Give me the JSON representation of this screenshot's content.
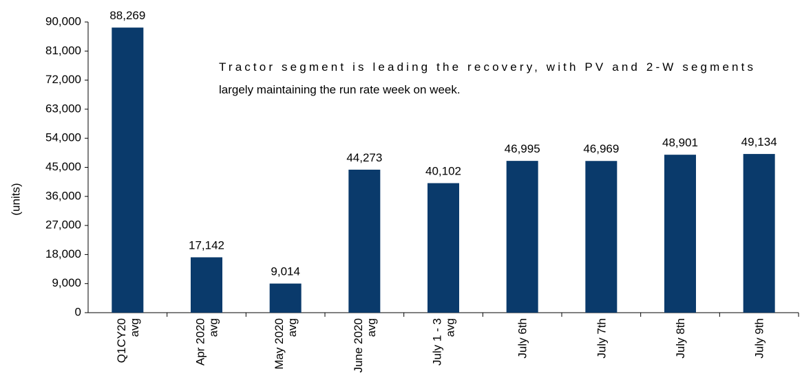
{
  "chart_data": {
    "type": "bar",
    "y_label": "(units)",
    "annotation": [
      "Tractor segment is leading the recovery,  with  PV and 2-W segments",
      "largely maintaining the run rate week on week."
    ],
    "categories": [
      "Q1CY20\navg",
      "Apr 2020\navg",
      "May 2020\navg",
      "June 2020\navg",
      "July 1 - 3\navg",
      "July 6th",
      "July 7th",
      "July 8th",
      "July 9th"
    ],
    "values": [
      88269,
      17142,
      9014,
      44273,
      40102,
      46995,
      46969,
      48901,
      49134
    ],
    "value_labels": [
      "88,269",
      "17,142",
      "9,014",
      "44,273",
      "40,102",
      "46,995",
      "46,969",
      "48,901",
      "49,134"
    ],
    "color": "#0a3a6b",
    "ylim": [
      0,
      90000
    ],
    "yticks": [
      0,
      {
        "value": 9000,
        "label": "9,000"
      },
      {
        "value": 18000,
        "label": "18,000"
      },
      {
        "value": 27000,
        "label": "27,000"
      },
      {
        "value": 36000,
        "label": "36,000"
      },
      {
        "value": 45000,
        "label": "45,000"
      },
      {
        "value": 54000,
        "label": "54,000"
      },
      {
        "value": 63000,
        "label": "63,000"
      },
      {
        "value": 72000,
        "label": "72,000"
      },
      {
        "value": 81000,
        "label": "81,000"
      },
      {
        "value": 90000,
        "label": "90,000"
      }
    ],
    "grid": false
  }
}
